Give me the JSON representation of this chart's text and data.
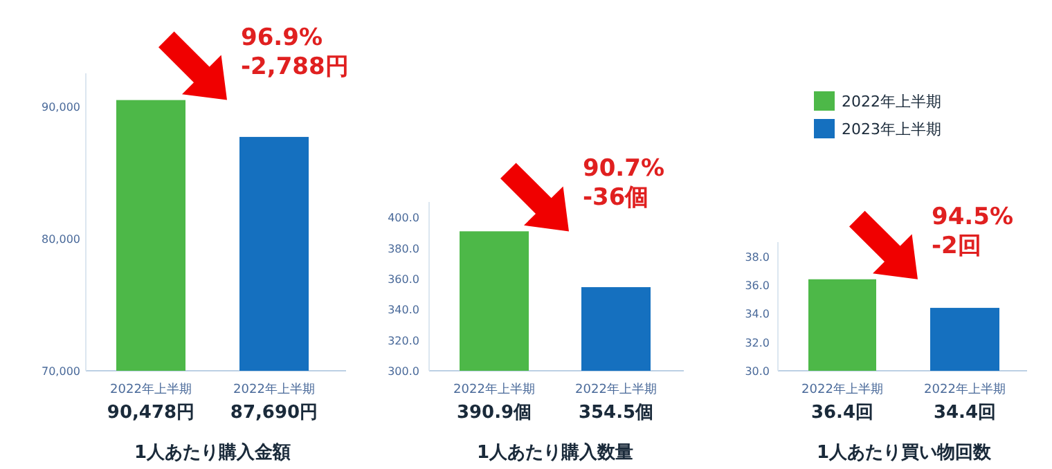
{
  "chart_data": [
    {
      "type": "bar",
      "title": "1人あたり購入金額",
      "categories": [
        "2022年上半期",
        "2022年上半期"
      ],
      "values": [
        90478,
        87690
      ],
      "colors": [
        "#4db848",
        "#1570bf"
      ],
      "value_labels": [
        "90,478円",
        "87,690円"
      ],
      "ylim": [
        70000,
        92500
      ],
      "yticks": [
        {
          "value": 70000,
          "label": "70,000"
        },
        {
          "value": 80000,
          "label": "80,000"
        },
        {
          "value": 90000,
          "label": "90,000"
        }
      ],
      "annotations": [
        "96.9%",
        "-2,788円"
      ]
    },
    {
      "type": "bar",
      "title": "1人あたり購入数量",
      "categories": [
        "2022年上半期",
        "2022年上半期"
      ],
      "values": [
        390.9,
        354.5
      ],
      "colors": [
        "#4db848",
        "#1570bf"
      ],
      "value_labels": [
        "390.9個",
        "354.5個"
      ],
      "ylim": [
        300,
        410
      ],
      "yticks": [
        {
          "value": 300,
          "label": "300.0"
        },
        {
          "value": 320,
          "label": "320.0"
        },
        {
          "value": 340,
          "label": "340.0"
        },
        {
          "value": 360,
          "label": "360.0"
        },
        {
          "value": 380,
          "label": "380.0"
        },
        {
          "value": 400,
          "label": "400.0"
        }
      ],
      "annotations": [
        "90.7%",
        "-36個"
      ]
    },
    {
      "type": "bar",
      "title": "1人あたり買い物回数",
      "categories": [
        "2022年上半期",
        "2022年上半期"
      ],
      "legend": "top",
      "series": [
        {
          "name": "2022年上半期",
          "color": "#4db848",
          "values": [
            36.4,
            null
          ],
          "value_labels": [
            "36.4回",
            null
          ]
        },
        {
          "name": "2023年上半期",
          "color": "#1570bf",
          "values": [
            null,
            34.4
          ],
          "value_labels": [
            null,
            "34.4回"
          ]
        }
      ],
      "ylim": [
        30,
        39
      ],
      "yticks": [
        {
          "value": 30,
          "label": "30.0"
        },
        {
          "value": 32,
          "label": "32.0"
        },
        {
          "value": 34,
          "label": "34.0"
        },
        {
          "value": 36,
          "label": "36.0"
        },
        {
          "value": 38,
          "label": "38.0"
        }
      ],
      "annotations": [
        "94.5%",
        "-2回"
      ]
    }
  ]
}
